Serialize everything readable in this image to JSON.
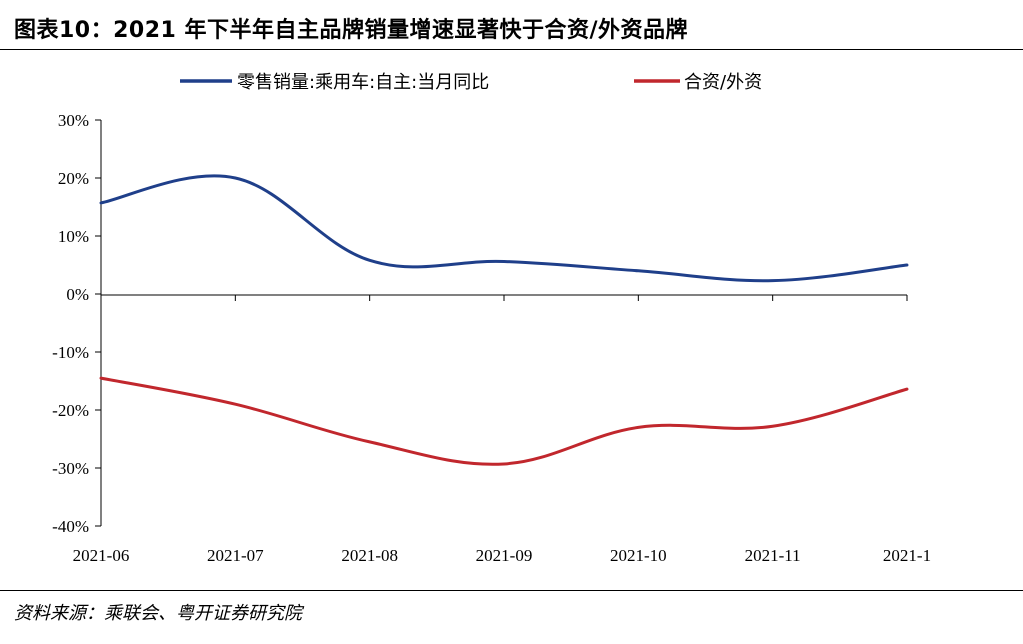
{
  "title": "图表10：2021 年下半年自主品牌销量增速显著快于合资/外资品牌",
  "source": "资料来源：乘联会、粤开证券研究院",
  "chart_data": {
    "type": "line",
    "title": "图表10：2021 年下半年自主品牌销量增速显著快于合资/外资品牌",
    "categories": [
      "2021-06",
      "2021-07",
      "2021-08",
      "2021-09",
      "2021-10",
      "2021-11",
      "2021-1"
    ],
    "yticks": [
      "30%",
      "20%",
      "10%",
      "0%",
      "-10%",
      "-20%",
      "-30%",
      "-40%"
    ],
    "ylim": [
      -40,
      30
    ],
    "grid": false,
    "legend_position": "top",
    "series": [
      {
        "name": "零售销量:乘用车:自主:当月同比",
        "color": "#1f3f8a",
        "values": [
          15.7,
          20.0,
          5.8,
          5.6,
          4.0,
          2.3,
          5.0
        ]
      },
      {
        "name": "合资/外资",
        "color": "#c1272d",
        "values": [
          -14.5,
          -19.0,
          -25.5,
          -29.3,
          -23.0,
          -22.8,
          -16.4
        ]
      }
    ]
  }
}
